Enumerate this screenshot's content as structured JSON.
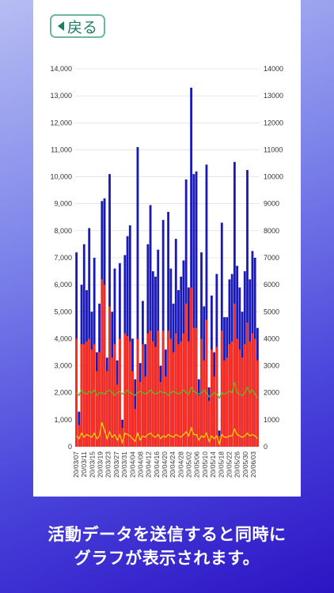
{
  "back_button": {
    "label": "戻る",
    "icon": "left-triangle-icon"
  },
  "caption": {
    "line1": "活動データを送信すると同時に",
    "line2": "グラフが表示されます。"
  },
  "colors": {
    "bar_total": "#1a1ab8",
    "bar_sub": "#ff2a1a",
    "line_green": "#5fb82a",
    "line_yellow": "#e8d400"
  },
  "chart_data": {
    "type": "bar",
    "left_ticks": [
      "0",
      "1,000",
      "2,000",
      "3,000",
      "4,000",
      "5,000",
      "6,000",
      "7,000",
      "8,000",
      "9,000",
      "10,000",
      "11,000",
      "12,000",
      "13,000",
      "14,000"
    ],
    "right_ticks": [
      "0",
      "1000",
      "2000",
      "3000",
      "4000",
      "5000",
      "6000",
      "7000",
      "8000",
      "9000",
      "10000",
      "11000",
      "12000",
      "13000",
      "14000"
    ],
    "ylim": [
      0,
      14000
    ],
    "x_labels": [
      "20/03/07",
      "20/03/11",
      "20/03/15",
      "20/03/19",
      "20/03/23",
      "20/03/27",
      "20/03/31",
      "20/04/04",
      "20/04/08",
      "20/04/12",
      "20/04/16",
      "20/04/20",
      "20/04/24",
      "20/04/28",
      "20/05/02",
      "20/05/06",
      "20/05/10",
      "20/05/14",
      "20/05/18",
      "20/05/22",
      "20/05/26",
      "20/05/30",
      "20/06/03"
    ],
    "total": [
      7200,
      1300,
      6000,
      7500,
      5800,
      8100,
      5000,
      7000,
      3500,
      5300,
      9100,
      9200,
      3300,
      10100,
      5000,
      6600,
      3200,
      6800,
      1000,
      7100,
      7800,
      8200,
      4000,
      2500,
      11100,
      3100,
      5400,
      3800,
      7500,
      8950,
      6500,
      6300,
      7300,
      3000,
      8400,
      3600,
      8700,
      6600,
      5300,
      7700,
      5800,
      6300,
      6900,
      9900,
      5900,
      13300,
      10100,
      10200,
      2500,
      7200,
      5200,
      10450,
      2200,
      5600,
      3500,
      6400,
      600,
      8300,
      4800,
      4800,
      6200,
      6400,
      10550,
      6700,
      5900,
      5000,
      6500,
      10250,
      6200,
      7250,
      7000,
      4400
    ],
    "sub": [
      4000,
      800,
      3800,
      3800,
      3900,
      4000,
      3600,
      3800,
      2800,
      3500,
      6200,
      6000,
      2800,
      5200,
      3300,
      3800,
      2300,
      4000,
      700,
      4200,
      4100,
      3900,
      2800,
      1400,
      4000,
      2400,
      3800,
      2600,
      4200,
      4300,
      3900,
      3700,
      4300,
      2400,
      4300,
      2600,
      4300,
      4000,
      3500,
      4200,
      3800,
      3900,
      4200,
      5300,
      3900,
      5900,
      4400,
      4400,
      1900,
      4000,
      3200,
      4700,
      1700,
      3600,
      2600,
      3700,
      400,
      4300,
      3200,
      3300,
      3800,
      3900,
      5300,
      4000,
      3600,
      3300,
      3800,
      4600,
      3900,
      4200,
      4000,
      3200
    ],
    "green": [
      2000,
      1900,
      2100,
      2000,
      1950,
      2050,
      2000,
      2100,
      1900,
      2000,
      2000,
      1950,
      2050,
      2100,
      2000,
      1900,
      2000,
      2050,
      1950,
      2000,
      2100,
      2000,
      1950,
      1900,
      2000,
      2050,
      2000,
      1950,
      2000,
      2100,
      2000,
      1950,
      2000,
      2050,
      2000,
      2000,
      1900,
      2000,
      2050,
      2000,
      1950,
      2000,
      2100,
      2000,
      1950,
      2200,
      2050,
      2000,
      1950,
      2000,
      2100,
      2000,
      1850,
      1900,
      2000,
      1950,
      1800,
      2000,
      1950,
      2000,
      2050,
      2000,
      2400,
      2000,
      1950,
      1900,
      2000,
      2200,
      2000,
      2100,
      1950,
      1800
    ],
    "yellow": [
      400,
      300,
      500,
      350,
      450,
      400,
      350,
      500,
      300,
      400,
      900,
      600,
      300,
      550,
      350,
      450,
      250,
      450,
      150,
      500,
      450,
      400,
      300,
      200,
      500,
      250,
      400,
      350,
      450,
      500,
      400,
      350,
      450,
      300,
      400,
      350,
      450,
      400,
      350,
      450,
      400,
      350,
      450,
      550,
      400,
      700,
      450,
      450,
      250,
      400,
      350,
      500,
      200,
      400,
      300,
      400,
      100,
      450,
      350,
      350,
      400,
      400,
      650,
      450,
      400,
      350,
      400,
      500,
      400,
      450,
      400,
      300
    ]
  }
}
